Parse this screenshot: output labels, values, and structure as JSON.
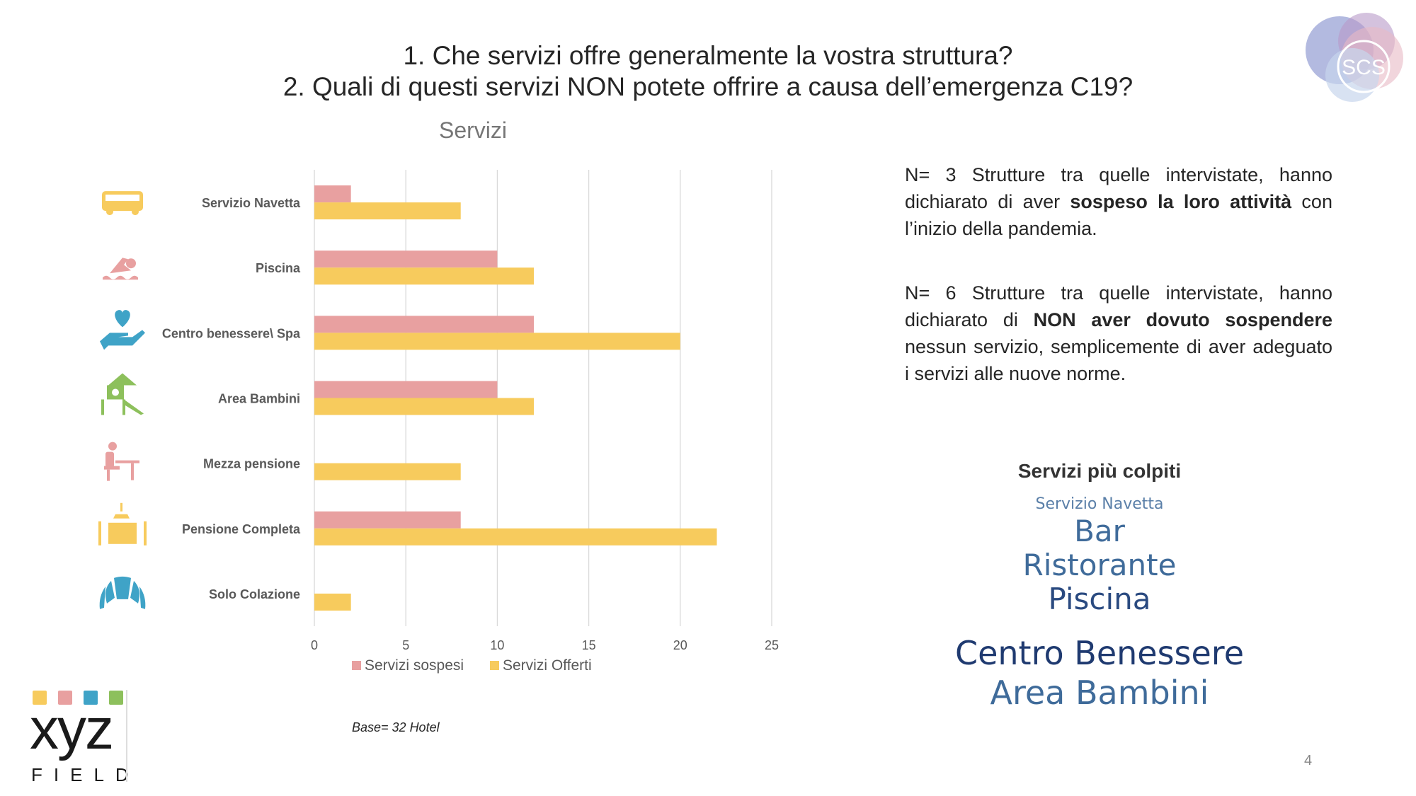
{
  "header": {
    "title_line1": "1. Che servizi offre generalmente la vostra struttura?",
    "title_line2": "2. Quali di questi servizi NON potete offrire a causa dell’emergenza C19?"
  },
  "brand_logo": {
    "text": "SCS"
  },
  "chart_data": {
    "type": "bar",
    "orientation": "horizontal",
    "title": "Servizi",
    "categories": [
      "Servizio Navetta",
      "Piscina",
      "Centro benessere\\ Spa",
      "Area Bambini",
      "Mezza pensione",
      "Pensione Completa",
      "Solo Colazione"
    ],
    "category_icons": [
      "bus-icon",
      "swimmer-icon",
      "wellness-hand-heart-icon",
      "playground-icon",
      "dining-person-icon",
      "banquet-table-icon",
      "croissant-icon"
    ],
    "category_icon_colors": [
      "#F7CB5D",
      "#E8A0A0",
      "#3FA3C7",
      "#8DC05C",
      "#E8A0A0",
      "#F7CB5D",
      "#3FA3C7"
    ],
    "series": [
      {
        "name": "Servizi sospesi",
        "color": "#E8A0A0",
        "values": [
          2,
          10,
          12,
          10,
          0,
          8,
          0
        ]
      },
      {
        "name": "Servizi Offerti",
        "color": "#F7CB5D",
        "values": [
          8,
          12,
          20,
          12,
          8,
          22,
          2
        ]
      }
    ],
    "xlim": [
      0,
      25
    ],
    "xticks": [
      "0",
      "5",
      "10",
      "15",
      "20",
      "25"
    ],
    "grid": true,
    "legend_position": "bottom",
    "xlabel": "",
    "ylabel": ""
  },
  "base_note": "Base= 32 Hotel",
  "paragraph1": {
    "pre": "N= 3 Strutture tra quelle intervistate, hanno dichiarato di aver ",
    "bold": "sospeso la loro attività",
    "post": " con l’inizio della pandemia."
  },
  "paragraph2": {
    "pre": "N= 6 Strutture tra quelle intervistate, hanno dichiarato di ",
    "bold": "NON aver dovuto sospendere",
    "post": " nessun servizio, semplicemente di aver adeguato i servizi alle nuove norme."
  },
  "wordcloud": {
    "title": "Servizi più colpiti",
    "words": [
      "Servizio Navetta",
      "Bar",
      "Ristorante",
      "Piscina",
      "Centro Benessere",
      "Area Bambini"
    ]
  },
  "footer_logo": {
    "text": "xyz",
    "sub": "FIELD",
    "colors": [
      "#F7CB5D",
      "#E8A0A0",
      "#3FA3C7",
      "#8DC05C"
    ]
  },
  "page_number": "4"
}
